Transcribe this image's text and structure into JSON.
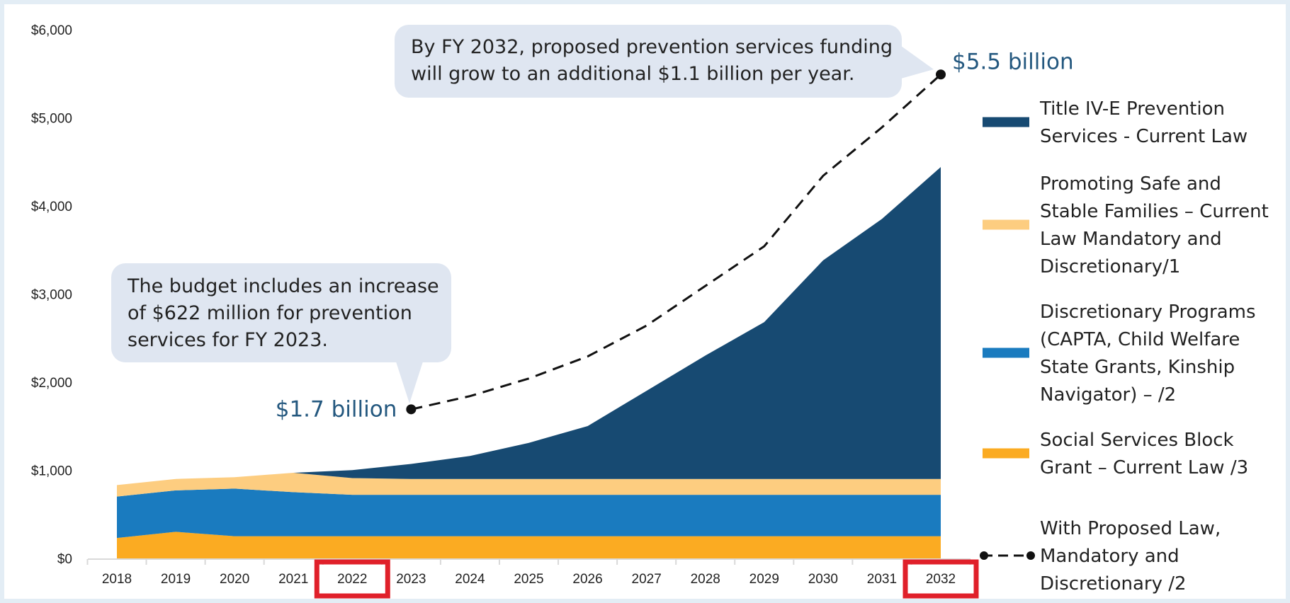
{
  "chart_data": {
    "type": "area",
    "x": [
      2018,
      2019,
      2020,
      2021,
      2022,
      2023,
      2024,
      2025,
      2026,
      2027,
      2028,
      2029,
      2030,
      2031,
      2032
    ],
    "categories": [
      "2018",
      "2019",
      "2020",
      "2021",
      "2022",
      "2023",
      "2024",
      "2025",
      "2026",
      "2027",
      "2028",
      "2029",
      "2030",
      "2031",
      "2032"
    ],
    "highlighted_categories": [
      "2022",
      "2032"
    ],
    "highlight_color": "#e0202a",
    "ylim": [
      0,
      6000
    ],
    "y_ticks": [
      {
        "value": 0,
        "label": "$0"
      },
      {
        "value": 1000,
        "label": "$1,000"
      },
      {
        "value": 2000,
        "label": "$2,000"
      },
      {
        "value": 3000,
        "label": "$3,000"
      },
      {
        "value": 4000,
        "label": "$4,000"
      },
      {
        "value": 5000,
        "label": "$5,000"
      },
      {
        "value": 6000,
        "label": "$6,000"
      }
    ],
    "series": [
      {
        "name": "Social Services Block Grant  – Current Law /3",
        "color": "#fbab22",
        "values": [
          240,
          310,
          260,
          260,
          260,
          260,
          260,
          260,
          260,
          260,
          260,
          260,
          260,
          260,
          260
        ]
      },
      {
        "name": "Discretionary Programs (CAPTA, Child Welfare State Grants, Kinship Navigator) – /2",
        "color": "#1a7bbf",
        "values": [
          470,
          470,
          540,
          500,
          470,
          470,
          470,
          470,
          470,
          470,
          470,
          470,
          470,
          470,
          470
        ]
      },
      {
        "name": "Promoting Safe and Stable Families – Current Law Mandatory and Discretionary/1",
        "color": "#fdcd80",
        "values": [
          130,
          130,
          130,
          220,
          190,
          180,
          180,
          180,
          180,
          180,
          180,
          180,
          180,
          180,
          180
        ]
      },
      {
        "name": "Title IV-E Prevention Services - Current Law",
        "color": "#174a72",
        "values": [
          0,
          0,
          0,
          0,
          90,
          170,
          260,
          410,
          600,
          1000,
          1400,
          1780,
          2480,
          2950,
          3540
        ]
      }
    ],
    "proposed_line": {
      "name": "With Proposed Law, Mandatory and Discretionary /2",
      "x": [
        2023,
        2024,
        2025,
        2026,
        2027,
        2028,
        2029,
        2030,
        2031,
        2032
      ],
      "values": [
        1700,
        1850,
        2050,
        2300,
        2650,
        3100,
        3550,
        4350,
        4900,
        5500
      ],
      "color": "#111111"
    },
    "value_labels": {
      "start": "$1.7 billion",
      "end": "$5.5 billion",
      "color": "#24587f"
    },
    "annotations": [
      {
        "lines": [
          "The budget includes an increase",
          "of $622 million for prevention",
          "services for FY 2023."
        ]
      },
      {
        "lines": [
          "By FY 2032, proposed prevention services funding",
          "will grow to an additional $1.1 billion per year."
        ]
      }
    ],
    "annotation_fill": "#dfe6f1",
    "legend": {
      "position": "right",
      "items": [
        {
          "lines": [
            "Title IV-E Prevention",
            "Services - Current Law"
          ],
          "color": "#174a72",
          "style": "bar"
        },
        {
          "lines": [
            "Promoting Safe and",
            "Stable Families – Current",
            "Law Mandatory and",
            "Discretionary/1"
          ],
          "color": "#fdcd80",
          "style": "bar"
        },
        {
          "lines": [
            "Discretionary Programs",
            "(CAPTA, Child Welfare",
            "State Grants, Kinship",
            "Navigator) – /2"
          ],
          "color": "#1a7bbf",
          "style": "bar"
        },
        {
          "lines": [
            "Social Services Block",
            "Grant  – Current Law /3"
          ],
          "color": "#fbab22",
          "style": "bar"
        },
        {
          "lines": [
            "With Proposed Law,",
            "Mandatory and",
            "Discretionary /2"
          ],
          "color": "#111111",
          "style": "dashed"
        }
      ]
    },
    "grid": false
  }
}
